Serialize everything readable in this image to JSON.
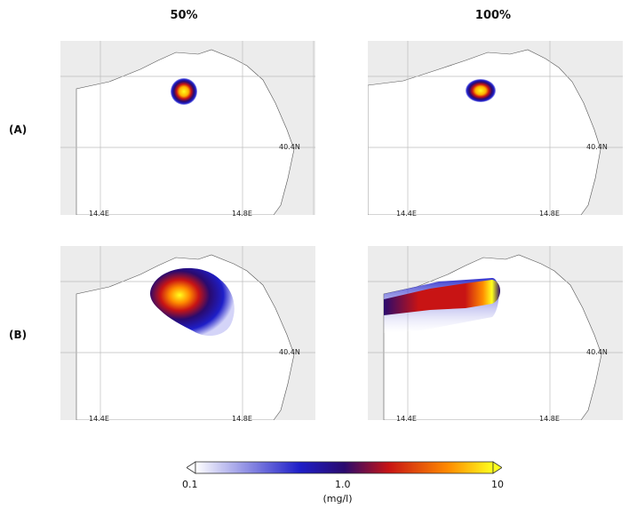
{
  "columns": [
    "50%",
    "100%"
  ],
  "rows": [
    "(A)",
    "(B)"
  ],
  "panels": [
    {
      "col": "50%",
      "row": "(A)",
      "lon_ticks": [
        "14.4E",
        "14.8E"
      ],
      "lat_tick": "40.4N"
    },
    {
      "col": "100%",
      "row": "(A)",
      "lon_ticks": [
        "14.4E",
        "14.8E"
      ],
      "lat_tick": "40.4N"
    },
    {
      "col": "50%",
      "row": "(B)",
      "lon_ticks": [
        "14.4E",
        "14.8E"
      ],
      "lat_tick": "40.4N"
    },
    {
      "col": "100%",
      "row": "(B)",
      "lon_ticks": [
        "14.4E",
        "14.8E"
      ],
      "lat_tick": "40.4N"
    }
  ],
  "colorbar": {
    "min_label": "0.1",
    "mid_label": "1.0",
    "max_label": "10",
    "unit": "(mg/l)",
    "colors": [
      "#ffffff",
      "#1e1ec8",
      "#2a0a6e",
      "#c81414",
      "#ff8c00",
      "#ffff1e"
    ]
  }
}
